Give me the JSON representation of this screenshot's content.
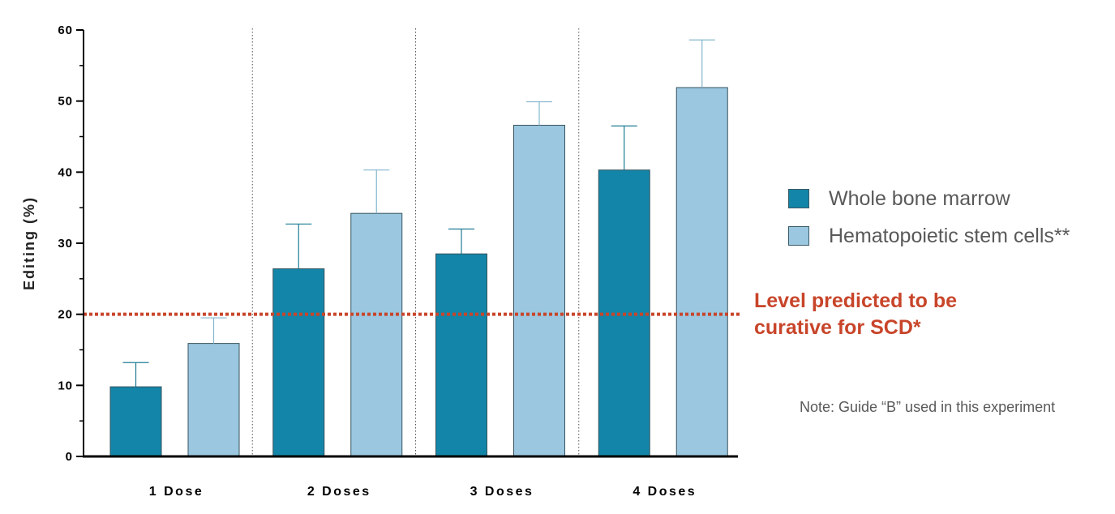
{
  "chart_data": {
    "type": "bar",
    "ylabel": "Editing (%)",
    "xlabel": "",
    "ylim": [
      0,
      60
    ],
    "yticks": [
      0,
      10,
      20,
      30,
      40,
      50,
      60
    ],
    "categories": [
      "1 Dose",
      "2 Doses",
      "3 Doses",
      "4 Doses"
    ],
    "series": [
      {
        "name": "Whole bone marrow",
        "values": [
          9.8,
          26.4,
          28.5,
          40.3
        ],
        "error": [
          3.4,
          6.3,
          3.5,
          6.2
        ],
        "color": "#1385a8"
      },
      {
        "name": "Hematopoietic stem cells**",
        "values": [
          15.9,
          34.2,
          46.6,
          51.9
        ],
        "error": [
          3.6,
          6.1,
          3.3,
          6.7
        ],
        "color": "#9bc7e0"
      }
    ],
    "reference_line": {
      "value": 20,
      "label_lines": [
        "Level predicted to be",
        "curative for SCD*"
      ],
      "color": "#c8452a"
    },
    "legend_placement": "right",
    "grid": false,
    "note": "Note: Guide “B” used in this experiment"
  }
}
